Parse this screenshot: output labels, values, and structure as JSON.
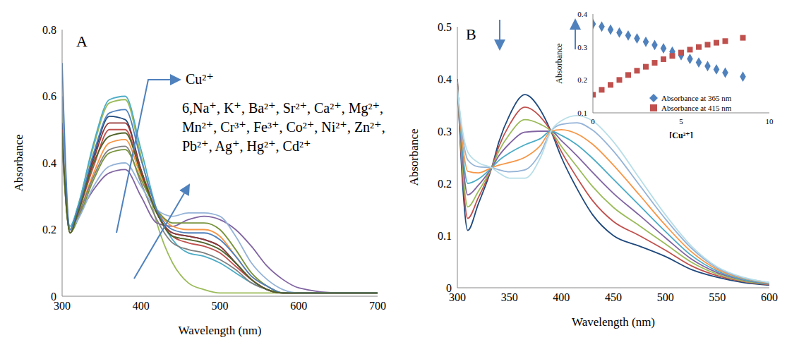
{
  "chart_data": [
    {
      "type": "line",
      "title": "A",
      "x_label": "Wavelength (nm)",
      "y_label": "Absorbance",
      "annotations": [
        "Cu²⁺",
        "6,Na⁺, K⁺, Ba²⁺, Sr²⁺, Ca²⁺, Mg²⁺, Mn²⁺, Cr³⁺, Fe³⁺, Co²⁺, Ni²⁺, Zn²⁺, Pb²⁺, Ag⁺, Hg²⁺, Cd²⁺"
      ],
      "xlim": [
        300,
        700
      ],
      "xticks": [
        300,
        400,
        500,
        600,
        700
      ],
      "ylim": [
        0,
        0.8
      ],
      "yticks": [
        0,
        0.2,
        0.4,
        0.6,
        0.8
      ],
      "grid": false,
      "x": [
        300,
        310,
        320,
        340,
        360,
        380,
        400,
        420,
        440,
        460,
        480,
        500,
        520,
        540,
        560,
        580,
        600,
        650,
        700
      ],
      "series": [
        {
          "color": "#9bbb59",
          "values": [
            0.55,
            0.2,
            0.27,
            0.45,
            0.58,
            0.59,
            0.42,
            0.22,
            0.1,
            0.04,
            0.02,
            0.01,
            0.01,
            0.01,
            0.01,
            0.01,
            0.01,
            0.01,
            0.01
          ]
        },
        {
          "color": "#8064a2",
          "values": [
            0.45,
            0.2,
            0.24,
            0.32,
            0.37,
            0.38,
            0.3,
            0.22,
            0.21,
            0.23,
            0.24,
            0.23,
            0.2,
            0.15,
            0.09,
            0.05,
            0.025,
            0.01,
            0.01
          ]
        },
        {
          "color": "#4bacc6",
          "values": [
            0.5,
            0.21,
            0.27,
            0.46,
            0.59,
            0.6,
            0.44,
            0.26,
            0.17,
            0.13,
            0.12,
            0.1,
            0.07,
            0.04,
            0.02,
            0.01,
            0.01,
            0.01,
            0.01
          ]
        },
        {
          "color": "#1f497d",
          "values": [
            0.52,
            0.2,
            0.26,
            0.42,
            0.54,
            0.53,
            0.38,
            0.25,
            0.19,
            0.18,
            0.17,
            0.15,
            0.1,
            0.05,
            0.02,
            0.01,
            0.01,
            0.01,
            0.01
          ]
        },
        {
          "color": "#f79646",
          "values": [
            0.48,
            0.19,
            0.24,
            0.37,
            0.46,
            0.47,
            0.36,
            0.26,
            0.21,
            0.2,
            0.2,
            0.18,
            0.12,
            0.06,
            0.03,
            0.01,
            0.01,
            0.01,
            0.01
          ]
        },
        {
          "color": "#c0504d",
          "values": [
            0.5,
            0.19,
            0.25,
            0.39,
            0.5,
            0.5,
            0.37,
            0.25,
            0.18,
            0.16,
            0.15,
            0.13,
            0.09,
            0.05,
            0.02,
            0.01,
            0.01,
            0.01,
            0.01
          ]
        },
        {
          "color": "#7f7f7f",
          "values": [
            0.47,
            0.19,
            0.24,
            0.36,
            0.44,
            0.45,
            0.34,
            0.23,
            0.16,
            0.14,
            0.13,
            0.11,
            0.08,
            0.04,
            0.02,
            0.01,
            0.01,
            0.01,
            0.01
          ]
        },
        {
          "color": "#953735",
          "values": [
            0.5,
            0.2,
            0.25,
            0.41,
            0.52,
            0.52,
            0.38,
            0.25,
            0.19,
            0.18,
            0.17,
            0.15,
            0.1,
            0.05,
            0.02,
            0.01,
            0.01,
            0.01,
            0.01
          ]
        },
        {
          "color": "#77933c",
          "values": [
            0.46,
            0.19,
            0.23,
            0.35,
            0.43,
            0.44,
            0.35,
            0.26,
            0.22,
            0.22,
            0.22,
            0.2,
            0.14,
            0.07,
            0.03,
            0.01,
            0.01,
            0.01,
            0.01
          ]
        },
        {
          "color": "#95b3d7",
          "values": [
            0.6,
            0.2,
            0.23,
            0.33,
            0.39,
            0.4,
            0.33,
            0.26,
            0.24,
            0.25,
            0.25,
            0.24,
            0.18,
            0.1,
            0.05,
            0.02,
            0.01,
            0.01,
            0.01
          ]
        },
        {
          "color": "#4f81bd",
          "values": [
            0.7,
            0.2,
            0.26,
            0.43,
            0.55,
            0.56,
            0.41,
            0.26,
            0.2,
            0.19,
            0.19,
            0.17,
            0.12,
            0.06,
            0.03,
            0.01,
            0.01,
            0.01,
            0.01
          ]
        },
        {
          "color": "#4f6228",
          "values": [
            0.49,
            0.19,
            0.25,
            0.4,
            0.48,
            0.49,
            0.37,
            0.25,
            0.18,
            0.17,
            0.16,
            0.14,
            0.1,
            0.05,
            0.02,
            0.01,
            0.01,
            0.01,
            0.01
          ]
        }
      ]
    },
    {
      "type": "line",
      "title": "B",
      "x_label": "Wavelength (nm)",
      "y_label": "Absorbance",
      "xlim": [
        300,
        600
      ],
      "xticks": [
        300,
        350,
        400,
        450,
        500,
        550,
        600
      ],
      "ylim": [
        0,
        0.5
      ],
      "yticks": [
        0,
        0.1,
        0.2,
        0.3,
        0.4,
        0.5
      ],
      "grid": false,
      "x": [
        300,
        305,
        310,
        320,
        333,
        340,
        350,
        365,
        380,
        390,
        400,
        415,
        430,
        450,
        475,
        500,
        525,
        550,
        575,
        600
      ],
      "series": [
        {
          "color": "#1f497d",
          "values": [
            0.4,
            0.2,
            0.11,
            0.16,
            0.23,
            0.28,
            0.33,
            0.37,
            0.34,
            0.3,
            0.25,
            0.19,
            0.14,
            0.1,
            0.08,
            0.06,
            0.035,
            0.02,
            0.01,
            0.005
          ]
        },
        {
          "color": "#c0504d",
          "values": [
            0.397,
            0.215,
            0.133,
            0.172,
            0.23,
            0.271,
            0.312,
            0.346,
            0.327,
            0.3,
            0.261,
            0.211,
            0.167,
            0.127,
            0.1,
            0.072,
            0.042,
            0.023,
            0.012,
            0.006
          ]
        },
        {
          "color": "#9bbb59",
          "values": [
            0.394,
            0.23,
            0.155,
            0.184,
            0.23,
            0.262,
            0.294,
            0.322,
            0.313,
            0.3,
            0.271,
            0.232,
            0.194,
            0.154,
            0.119,
            0.084,
            0.049,
            0.026,
            0.013,
            0.007
          ]
        },
        {
          "color": "#8064a2",
          "values": [
            0.391,
            0.245,
            0.178,
            0.196,
            0.23,
            0.253,
            0.276,
            0.298,
            0.3,
            0.3,
            0.282,
            0.253,
            0.221,
            0.181,
            0.139,
            0.096,
            0.055,
            0.029,
            0.015,
            0.007
          ]
        },
        {
          "color": "#4bacc6",
          "values": [
            0.388,
            0.26,
            0.2,
            0.208,
            0.23,
            0.244,
            0.258,
            0.274,
            0.286,
            0.3,
            0.292,
            0.274,
            0.248,
            0.208,
            0.158,
            0.108,
            0.062,
            0.032,
            0.016,
            0.008
          ]
        },
        {
          "color": "#f79646",
          "values": [
            0.385,
            0.275,
            0.223,
            0.22,
            0.23,
            0.235,
            0.24,
            0.25,
            0.273,
            0.3,
            0.303,
            0.295,
            0.275,
            0.235,
            0.178,
            0.12,
            0.069,
            0.035,
            0.018,
            0.009
          ]
        },
        {
          "color": "#95b3d7",
          "values": [
            0.382,
            0.29,
            0.245,
            0.232,
            0.23,
            0.226,
            0.222,
            0.226,
            0.259,
            0.3,
            0.313,
            0.316,
            0.302,
            0.262,
            0.197,
            0.132,
            0.076,
            0.038,
            0.019,
            0.01
          ]
        },
        {
          "color": "#b7dee8",
          "values": [
            0.38,
            0.3,
            0.26,
            0.24,
            0.23,
            0.22,
            0.21,
            0.21,
            0.25,
            0.3,
            0.32,
            0.33,
            0.32,
            0.28,
            0.21,
            0.14,
            0.08,
            0.04,
            0.02,
            0.01
          ]
        }
      ]
    },
    {
      "type": "scatter",
      "x_label": "[Cu²⁺]",
      "y_label": "Absorbance",
      "xlim": [
        0,
        10
      ],
      "xticks": [
        0,
        5,
        10
      ],
      "ylim": [
        0.1,
        0.4
      ],
      "yticks": [
        0.1,
        0.2,
        0.3,
        0.4
      ],
      "grid": false,
      "legend": "lower right",
      "x": [
        0,
        0.5,
        1,
        1.5,
        2,
        2.5,
        3,
        3.5,
        4,
        4.5,
        5,
        5.5,
        6,
        6.5,
        7,
        7.5,
        8.5
      ],
      "series": [
        {
          "name": "Absorbance at 365 nm",
          "color": "#4f81bd",
          "marker": "diamond",
          "values": [
            0.37,
            0.362,
            0.353,
            0.344,
            0.335,
            0.326,
            0.316,
            0.306,
            0.296,
            0.286,
            0.275,
            0.264,
            0.253,
            0.242,
            0.232,
            0.222,
            0.21
          ]
        },
        {
          "name": "Absorbance at 415 nm",
          "color": "#c0504d",
          "marker": "square",
          "values": [
            0.155,
            0.17,
            0.185,
            0.2,
            0.215,
            0.228,
            0.24,
            0.252,
            0.263,
            0.273,
            0.283,
            0.292,
            0.3,
            0.307,
            0.313,
            0.318,
            0.328
          ]
        }
      ]
    }
  ]
}
